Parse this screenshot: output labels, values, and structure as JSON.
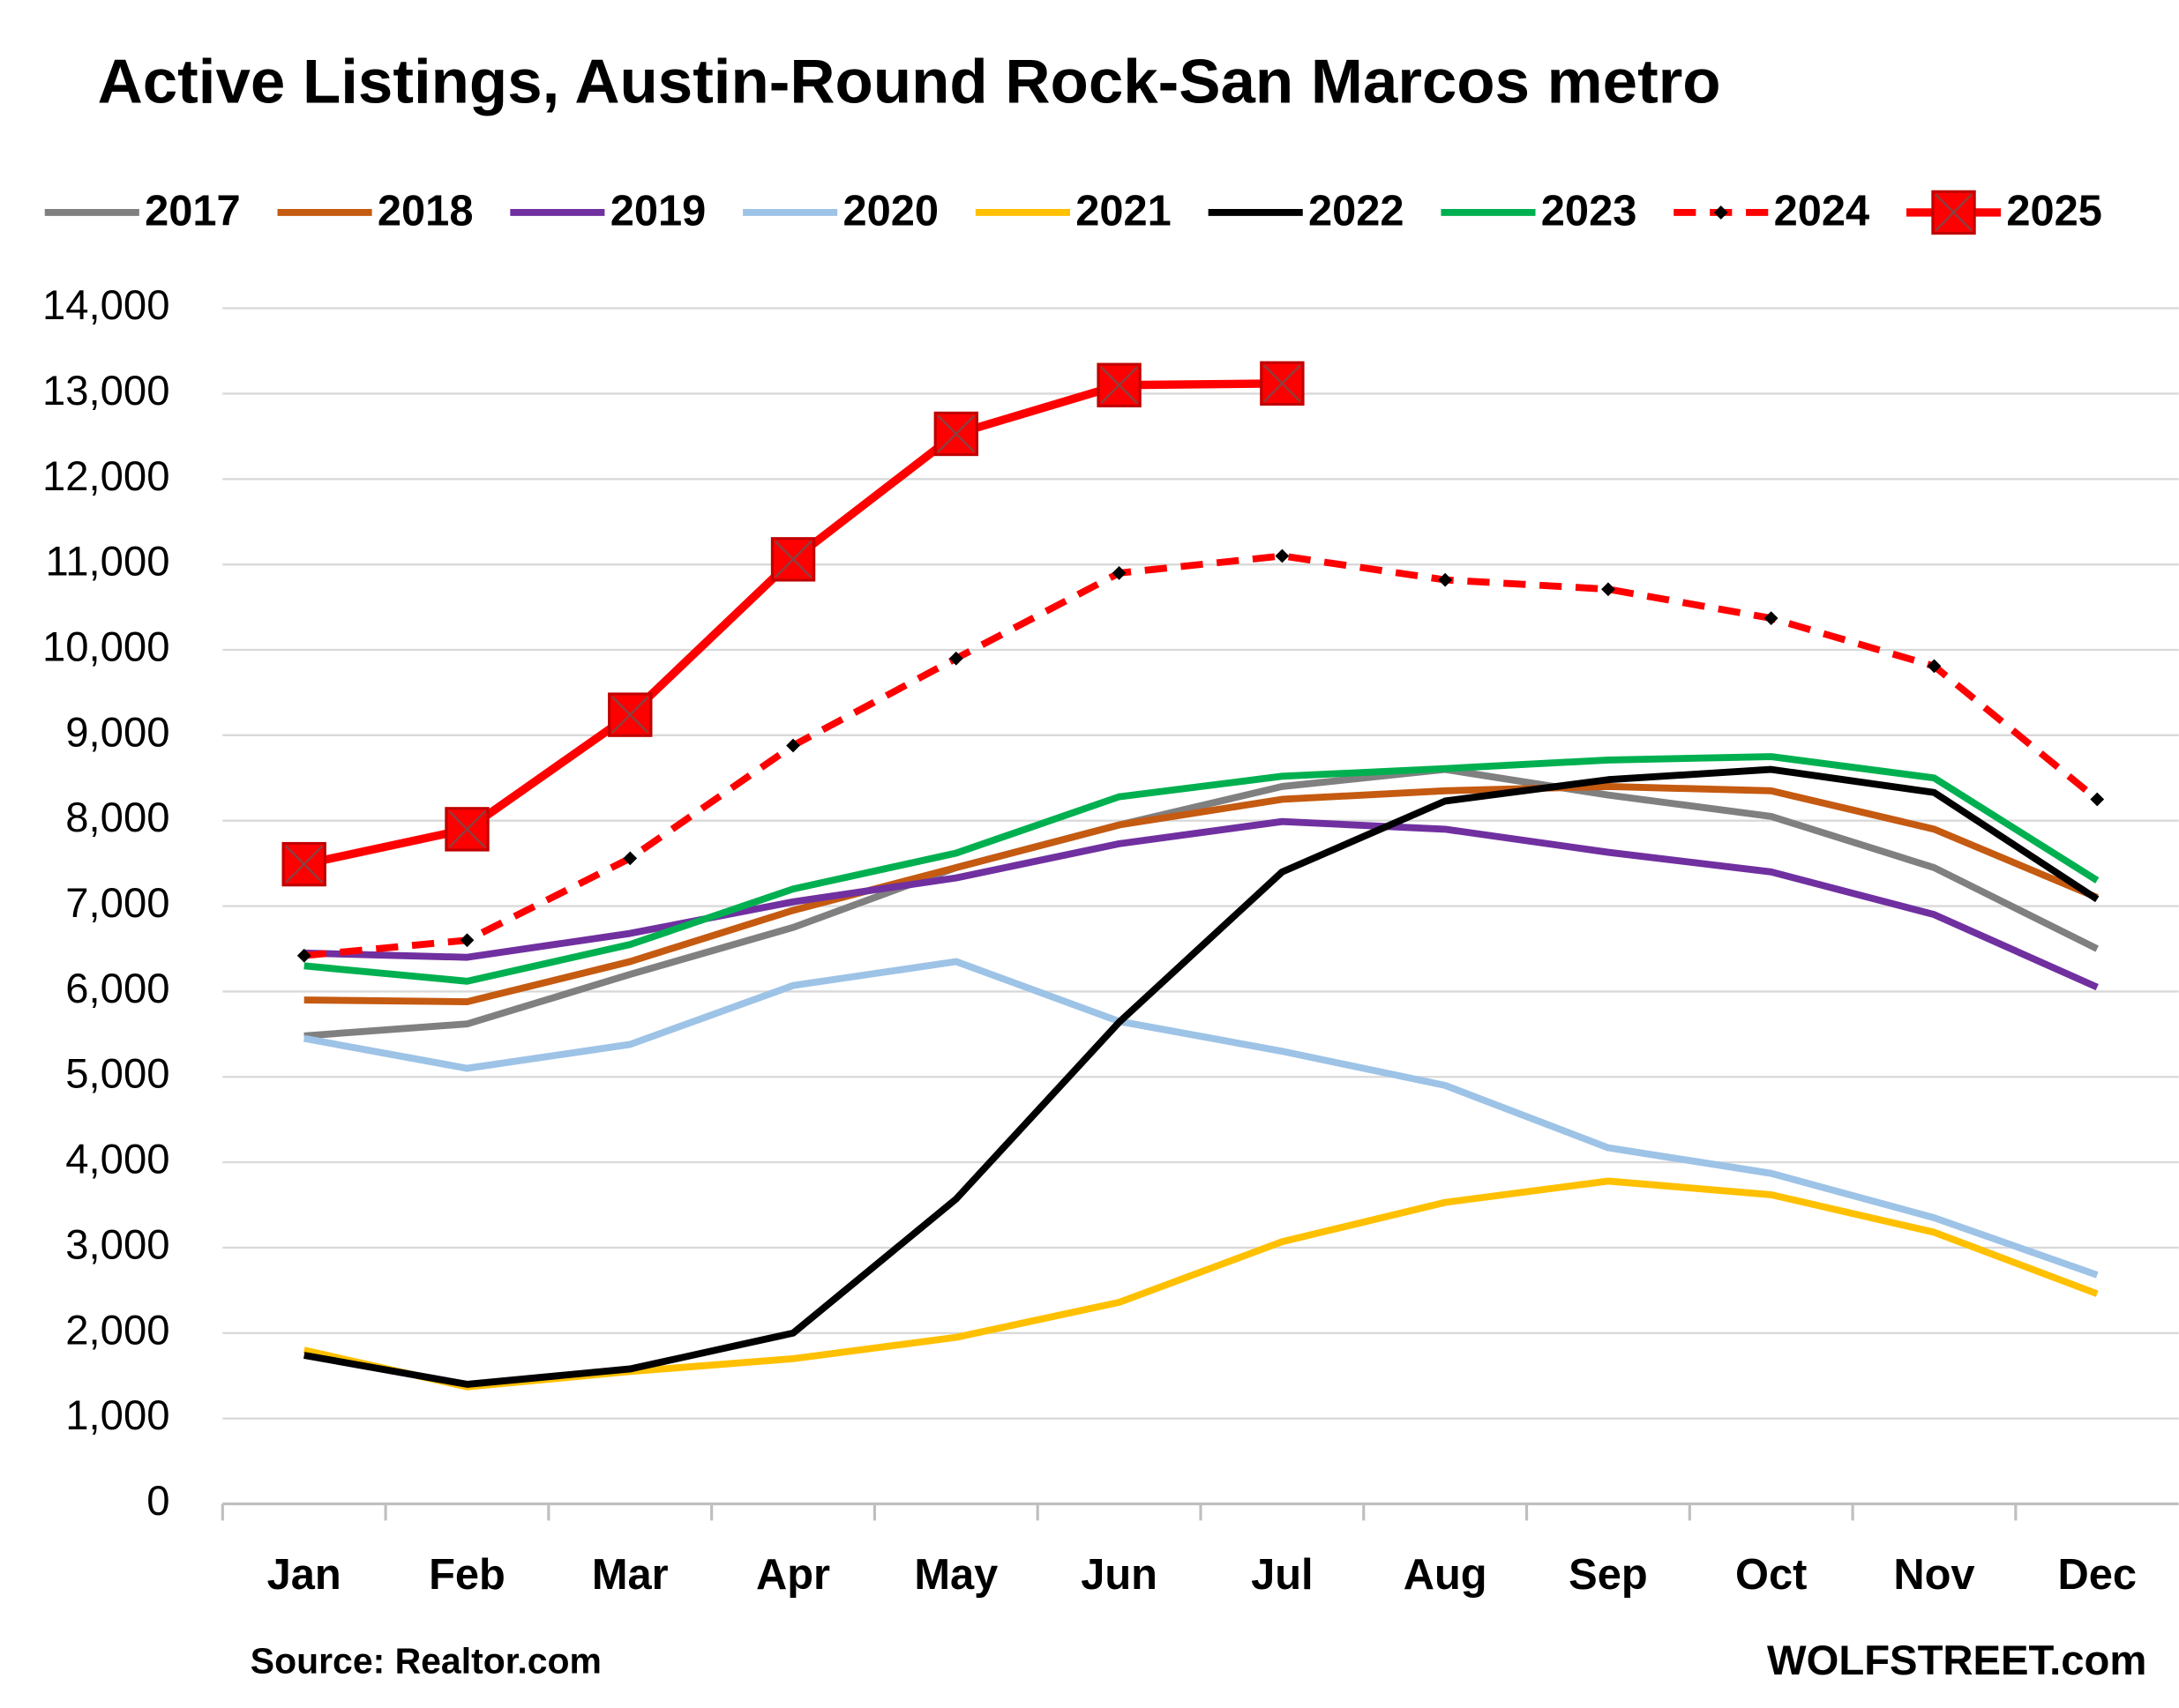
{
  "chart_data": {
    "type": "line",
    "title": "Active Listings, Austin-Round Rock-San Marcos metro",
    "categories": [
      "Jan",
      "Feb",
      "Mar",
      "Apr",
      "May",
      "Jun",
      "Jul",
      "Aug",
      "Sep",
      "Oct",
      "Nov",
      "Dec"
    ],
    "ylim": [
      0,
      14000
    ],
    "yticks": [
      0,
      {
        "value": 1000,
        "label": "1,000"
      },
      {
        "value": 2000,
        "label": "2,000"
      },
      {
        "value": 3000,
        "label": "3,000"
      },
      {
        "value": 4000,
        "label": "4,000"
      },
      {
        "value": 5000,
        "label": "5,000"
      },
      {
        "value": 6000,
        "label": "6,000"
      },
      {
        "value": 7000,
        "label": "7,000"
      },
      {
        "value": 8000,
        "label": "8,000"
      },
      {
        "value": 9000,
        "label": "9,000"
      },
      {
        "value": 10000,
        "label": "10,000"
      },
      {
        "value": 11000,
        "label": "11,000"
      },
      {
        "value": 12000,
        "label": "12,000"
      },
      {
        "value": 13000,
        "label": "13,000"
      },
      {
        "value": 14000,
        "label": "14,000"
      }
    ],
    "grid": true,
    "legend": "top",
    "series": [
      {
        "name": "2017",
        "color": "#808080",
        "values": [
          5480,
          5620,
          6200,
          6750,
          7450,
          7950,
          8400,
          8600,
          8300,
          8050,
          7450,
          6500
        ]
      },
      {
        "name": "2018",
        "color": "#c55a11",
        "values": [
          5900,
          5880,
          6350,
          6950,
          7450,
          7950,
          8250,
          8350,
          8400,
          8350,
          7900,
          7100
        ]
      },
      {
        "name": "2019",
        "color": "#7030a0",
        "values": [
          6450,
          6400,
          6680,
          7050,
          7330,
          7730,
          7990,
          7900,
          7630,
          7400,
          6900,
          6050
        ]
      },
      {
        "name": "2020",
        "color": "#9dc3e6",
        "values": [
          5450,
          5100,
          5380,
          6070,
          6350,
          5650,
          5300,
          4900,
          4170,
          3870,
          3350,
          2680
        ]
      },
      {
        "name": "2021",
        "color": "#ffc000",
        "values": [
          1800,
          1370,
          1550,
          1700,
          1950,
          2360,
          3070,
          3530,
          3780,
          3620,
          3180,
          2460
        ]
      },
      {
        "name": "2022",
        "color": "#000000",
        "values": [
          1740,
          1400,
          1580,
          2000,
          3570,
          5640,
          7400,
          8230,
          8480,
          8600,
          8330,
          7080
        ]
      },
      {
        "name": "2023",
        "color": "#00b050",
        "values": [
          6300,
          6120,
          6550,
          7200,
          7620,
          8280,
          8520,
          8610,
          8710,
          8750,
          8500,
          7300
        ]
      },
      {
        "name": "2024",
        "color": "#ff0000",
        "dashed": true,
        "marker": "diamond",
        "values": [
          6420,
          6600,
          7560,
          8880,
          9900,
          10900,
          11100,
          10820,
          10710,
          10370,
          9810,
          8250
        ]
      },
      {
        "name": "2025",
        "color": "#ff0000",
        "marker": "square",
        "values": [
          7490,
          7900,
          9240,
          11060,
          12530,
          13100,
          13120,
          null,
          null,
          null,
          null,
          null
        ]
      }
    ],
    "annotations": [
      "Source: Realtor.com",
      "WOLFSTREET.com"
    ]
  }
}
